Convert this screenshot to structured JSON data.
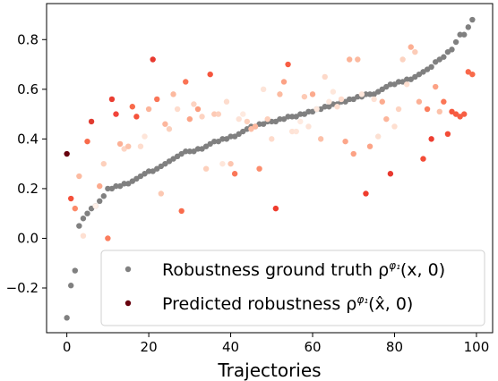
{
  "chart_data": {
    "type": "scatter",
    "title": "",
    "xlabel": "Trajectories",
    "ylabel": "",
    "xlim": [
      -4.95,
      103.95
    ],
    "ylim": [
      -0.38,
      0.945
    ],
    "xticks": [
      0,
      20,
      40,
      60,
      80,
      100
    ],
    "xtick_labels": [
      "0",
      "20",
      "40",
      "60",
      "80",
      "100"
    ],
    "yticks": [
      -0.2,
      0.0,
      0.2,
      0.4,
      0.6,
      0.8
    ],
    "ytick_labels": [
      "−0.2",
      "0.0",
      "0.2",
      "0.4",
      "0.6",
      "0.8"
    ],
    "grid": false,
    "legend_position": "lower-right",
    "legend_entries": [
      {
        "label": "Robustness ground truth ρᵠ¹(x, 0)",
        "color": "#808080"
      },
      {
        "label": "Predicted robustness ρᵠ¹(x̂, 0)",
        "color": "#67000d"
      }
    ],
    "series": [
      {
        "name": "Robustness ground truth",
        "color": "#808080",
        "x": [
          0,
          1,
          2,
          3,
          4,
          5,
          6,
          7,
          8,
          9,
          10,
          11,
          12,
          13,
          14,
          15,
          16,
          17,
          18,
          19,
          20,
          21,
          22,
          23,
          24,
          25,
          26,
          27,
          28,
          29,
          30,
          31,
          32,
          33,
          34,
          35,
          36,
          37,
          38,
          39,
          40,
          41,
          42,
          43,
          44,
          45,
          46,
          47,
          48,
          49,
          50,
          51,
          52,
          53,
          54,
          55,
          56,
          57,
          58,
          59,
          60,
          61,
          62,
          63,
          64,
          65,
          66,
          67,
          68,
          69,
          70,
          71,
          72,
          73,
          74,
          75,
          76,
          77,
          78,
          79,
          80,
          81,
          82,
          83,
          84,
          85,
          86,
          87,
          88,
          89,
          90,
          91,
          92,
          93,
          94,
          95,
          96,
          97,
          98,
          99
        ],
        "y": [
          -0.32,
          -0.19,
          -0.13,
          0.05,
          0.08,
          0.1,
          0.12,
          0.13,
          0.15,
          0.17,
          0.2,
          0.2,
          0.21,
          0.21,
          0.22,
          0.22,
          0.23,
          0.24,
          0.25,
          0.26,
          0.27,
          0.27,
          0.28,
          0.29,
          0.3,
          0.31,
          0.32,
          0.33,
          0.34,
          0.35,
          0.35,
          0.35,
          0.36,
          0.36,
          0.37,
          0.38,
          0.39,
          0.39,
          0.4,
          0.4,
          0.41,
          0.41,
          0.42,
          0.43,
          0.44,
          0.45,
          0.45,
          0.46,
          0.46,
          0.47,
          0.47,
          0.47,
          0.48,
          0.48,
          0.49,
          0.49,
          0.49,
          0.5,
          0.5,
          0.51,
          0.51,
          0.52,
          0.52,
          0.53,
          0.53,
          0.54,
          0.54,
          0.55,
          0.55,
          0.56,
          0.56,
          0.57,
          0.57,
          0.58,
          0.58,
          0.58,
          0.59,
          0.6,
          0.61,
          0.62,
          0.62,
          0.63,
          0.63,
          0.64,
          0.64,
          0.65,
          0.66,
          0.67,
          0.68,
          0.69,
          0.71,
          0.72,
          0.73,
          0.75,
          0.76,
          0.79,
          0.82,
          0.82,
          0.85,
          0.88
        ]
      },
      {
        "name": "Predicted robustness",
        "x": [
          0,
          1,
          2,
          3,
          4,
          5,
          6,
          7,
          8,
          9,
          10,
          11,
          12,
          13,
          14,
          15,
          16,
          17,
          18,
          19,
          20,
          21,
          22,
          23,
          24,
          25,
          26,
          27,
          28,
          29,
          30,
          31,
          32,
          33,
          34,
          35,
          36,
          37,
          38,
          39,
          40,
          41,
          42,
          43,
          44,
          45,
          46,
          47,
          48,
          49,
          50,
          51,
          52,
          53,
          54,
          55,
          56,
          57,
          58,
          59,
          60,
          61,
          62,
          63,
          64,
          65,
          66,
          67,
          68,
          69,
          70,
          71,
          72,
          73,
          74,
          75,
          76,
          77,
          78,
          79,
          80,
          81,
          82,
          83,
          84,
          85,
          86,
          87,
          88,
          89,
          90,
          91,
          92,
          93,
          94,
          95,
          96,
          97,
          98,
          99
        ],
        "y": [
          0.34,
          0.16,
          0.12,
          0.25,
          0.01,
          0.39,
          0.47,
          0.13,
          0.21,
          0.3,
          0.0,
          0.56,
          0.5,
          0.38,
          0.36,
          0.37,
          0.53,
          0.49,
          0.37,
          0.41,
          0.52,
          0.72,
          0.56,
          0.18,
          0.46,
          0.44,
          0.58,
          0.52,
          0.11,
          0.63,
          0.48,
          0.54,
          0.52,
          0.49,
          0.28,
          0.66,
          0.5,
          0.5,
          0.3,
          0.55,
          0.3,
          0.26,
          0.48,
          0.5,
          0.47,
          0.44,
          0.45,
          0.28,
          0.6,
          0.48,
          0.4,
          0.12,
          0.58,
          0.63,
          0.7,
          0.43,
          0.43,
          0.47,
          0.57,
          0.45,
          0.58,
          0.52,
          0.4,
          0.65,
          0.55,
          0.59,
          0.53,
          0.56,
          0.39,
          0.72,
          0.34,
          0.72,
          0.58,
          0.18,
          0.37,
          0.56,
          0.41,
          0.55,
          0.48,
          0.26,
          0.45,
          0.52,
          0.72,
          0.62,
          0.77,
          0.75,
          0.55,
          0.32,
          0.52,
          0.4,
          0.61,
          0.51,
          0.55,
          0.42,
          0.51,
          0.5,
          0.49,
          0.5,
          0.67,
          0.66
        ],
        "colors": [
          "#67000d",
          "#f44f39",
          "#fc8a6a",
          "#fcbba1",
          "#fee0d2",
          "#f86a4a",
          "#e03a2f",
          "#fff0e8",
          "#fcaa8d",
          "#fdd0bc",
          "#fb7d5d",
          "#ea3d31",
          "#f1443a",
          "#fcb095",
          "#fdd5c4",
          "#fcc2aa",
          "#f86a4a",
          "#f5533b",
          "#feddce",
          "#fee5d9",
          "#fcb59b",
          "#e8392f",
          "#fa7557",
          "#fcc8b2",
          "#fcb69d",
          "#fbd0bd",
          "#fcb99f",
          "#fedccd",
          "#f96b4c",
          "#fa7354",
          "#fca487",
          "#fdd3c1",
          "#fc9c7d",
          "#fdd3c1",
          "#fdd0bc",
          "#f5553d",
          "#fdcab5",
          "#fdd1be",
          "#fee6da",
          "#fddccd",
          "#fdc5af",
          "#fa7758",
          "#fde2d6",
          "#feeae0",
          "#fdd0bc",
          "#fcbda5",
          "#fcb79c",
          "#fc8d6d",
          "#fde4d8",
          "#fdcfbb",
          "#fedbcc",
          "#ef3c2d",
          "#fcbba1",
          "#fca285",
          "#f85d43",
          "#fee3d6",
          "#fee5d9",
          "#feeae0",
          "#fdcab5",
          "#fde3d7",
          "#fcaa8d",
          "#fde8dd",
          "#fcc0a8",
          "#fdd9c9",
          "#fde8dd",
          "#fee7db",
          "#fedfd0",
          "#fedbcc",
          "#fca68a",
          "#fcb397",
          "#fca285",
          "#fcb99f",
          "#fee6da",
          "#ef3c2d",
          "#fca487",
          "#fee1d4",
          "#fce0d2",
          "#fcab8f",
          "#fcb59b",
          "#e8392f",
          "#fedfd0",
          "#fdd3c1",
          "#fcd3c1",
          "#fedfd0",
          "#fcae92",
          "#fcccb8",
          "#fcb095",
          "#f34c37",
          "#fb7d5d",
          "#ed3e31",
          "#fca285",
          "#fcc2aa",
          "#fb7656",
          "#f34c37",
          "#f6583e",
          "#f75c41",
          "#f75f44",
          "#f75f44",
          "#f9674a",
          "#f86a4a"
        ]
      }
    ]
  }
}
